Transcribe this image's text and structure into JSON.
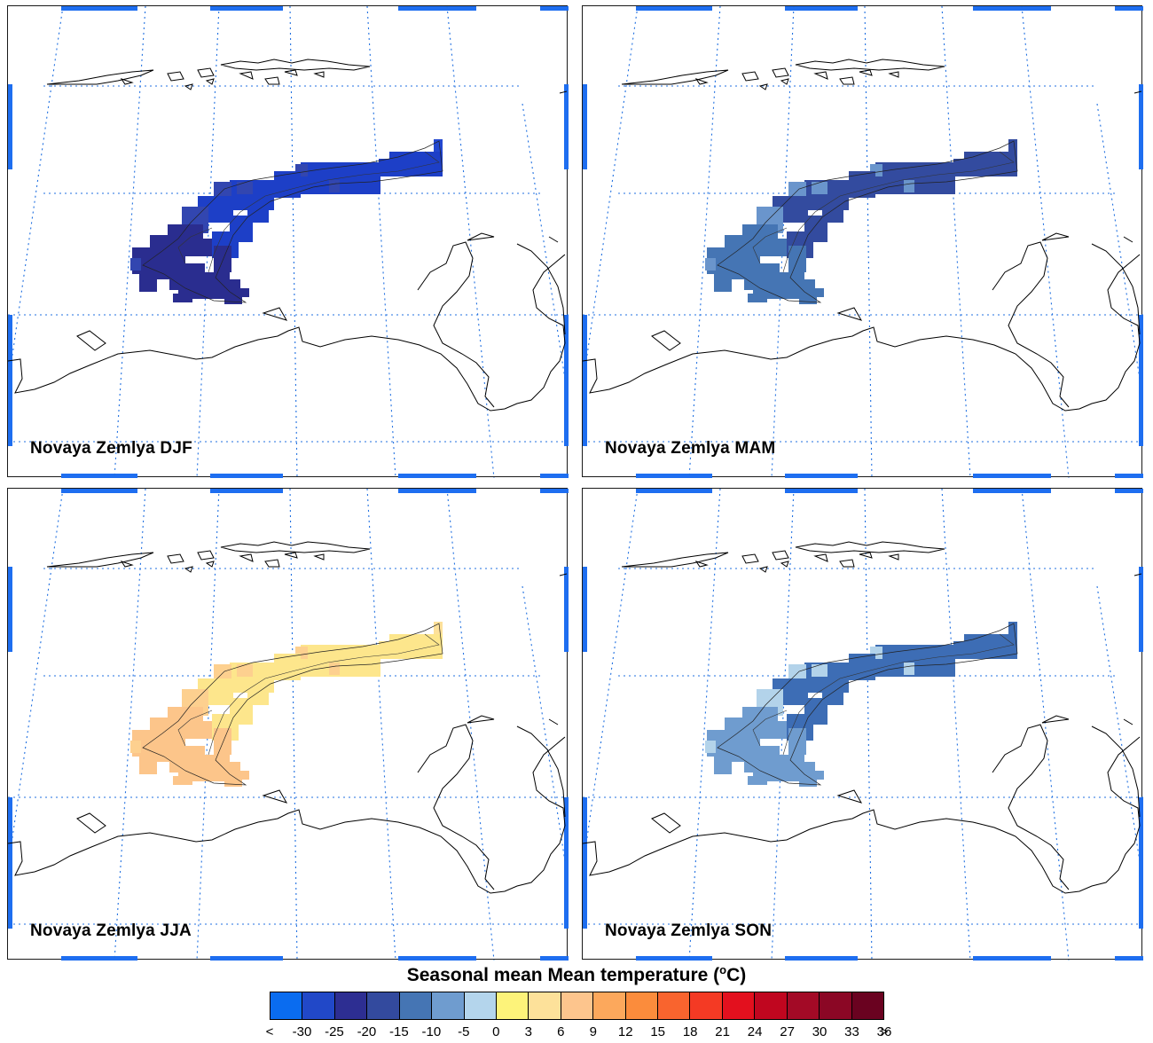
{
  "panels": [
    {
      "label": "Novaya Zemlya DJF",
      "season": "DJF",
      "fill": {
        "core": "#2a2d8f",
        "main": "#1d3fc7",
        "edge": "#3246b0",
        "tip": "#2348d0"
      }
    },
    {
      "label": "Novaya Zemlya MAM",
      "season": "MAM",
      "fill": {
        "core": "#4575b4",
        "main": "#334b9f",
        "edge": "#6a95cc",
        "tip": "#334b9f"
      }
    },
    {
      "label": "Novaya Zemlya JJA",
      "season": "JJA",
      "fill": {
        "core": "#fcc58a",
        "main": "#fde68c",
        "edge": "#fdd08f",
        "tip": "#fde19a"
      }
    },
    {
      "label": "Novaya Zemlya SON",
      "season": "SON",
      "fill": {
        "core": "#6f9ccf",
        "main": "#3d6db5",
        "edge": "#b3d3ea",
        "tip": "#3d6db5"
      }
    }
  ],
  "legend": {
    "title_main": "Seasonal mean Mean temperature (",
    "title_sup": "o",
    "title_end": "C)",
    "lower_label": "<",
    "upper_label": ">",
    "ticks": [
      "-30",
      "-25",
      "-20",
      "-15",
      "-10",
      "-5",
      "0",
      "3",
      "6",
      "9",
      "12",
      "15",
      "18",
      "21",
      "24",
      "27",
      "30",
      "33",
      "36"
    ],
    "colors": [
      "#0a6cf0",
      "#2148c8",
      "#2d2e92",
      "#334a9e",
      "#4575b4",
      "#6f9ccf",
      "#b4d5ec",
      "#fdf37a",
      "#fde19a",
      "#fdc58d",
      "#fca85c",
      "#fb8c3c",
      "#f9642e",
      "#f43a24",
      "#e3101e",
      "#c0061f",
      "#a30a26",
      "#8b0725",
      "#6a0220"
    ]
  },
  "style": {
    "grid_color": "#1f6fe0",
    "frame_ticks": "#1e6ef0",
    "coast_color": "#000000"
  }
}
